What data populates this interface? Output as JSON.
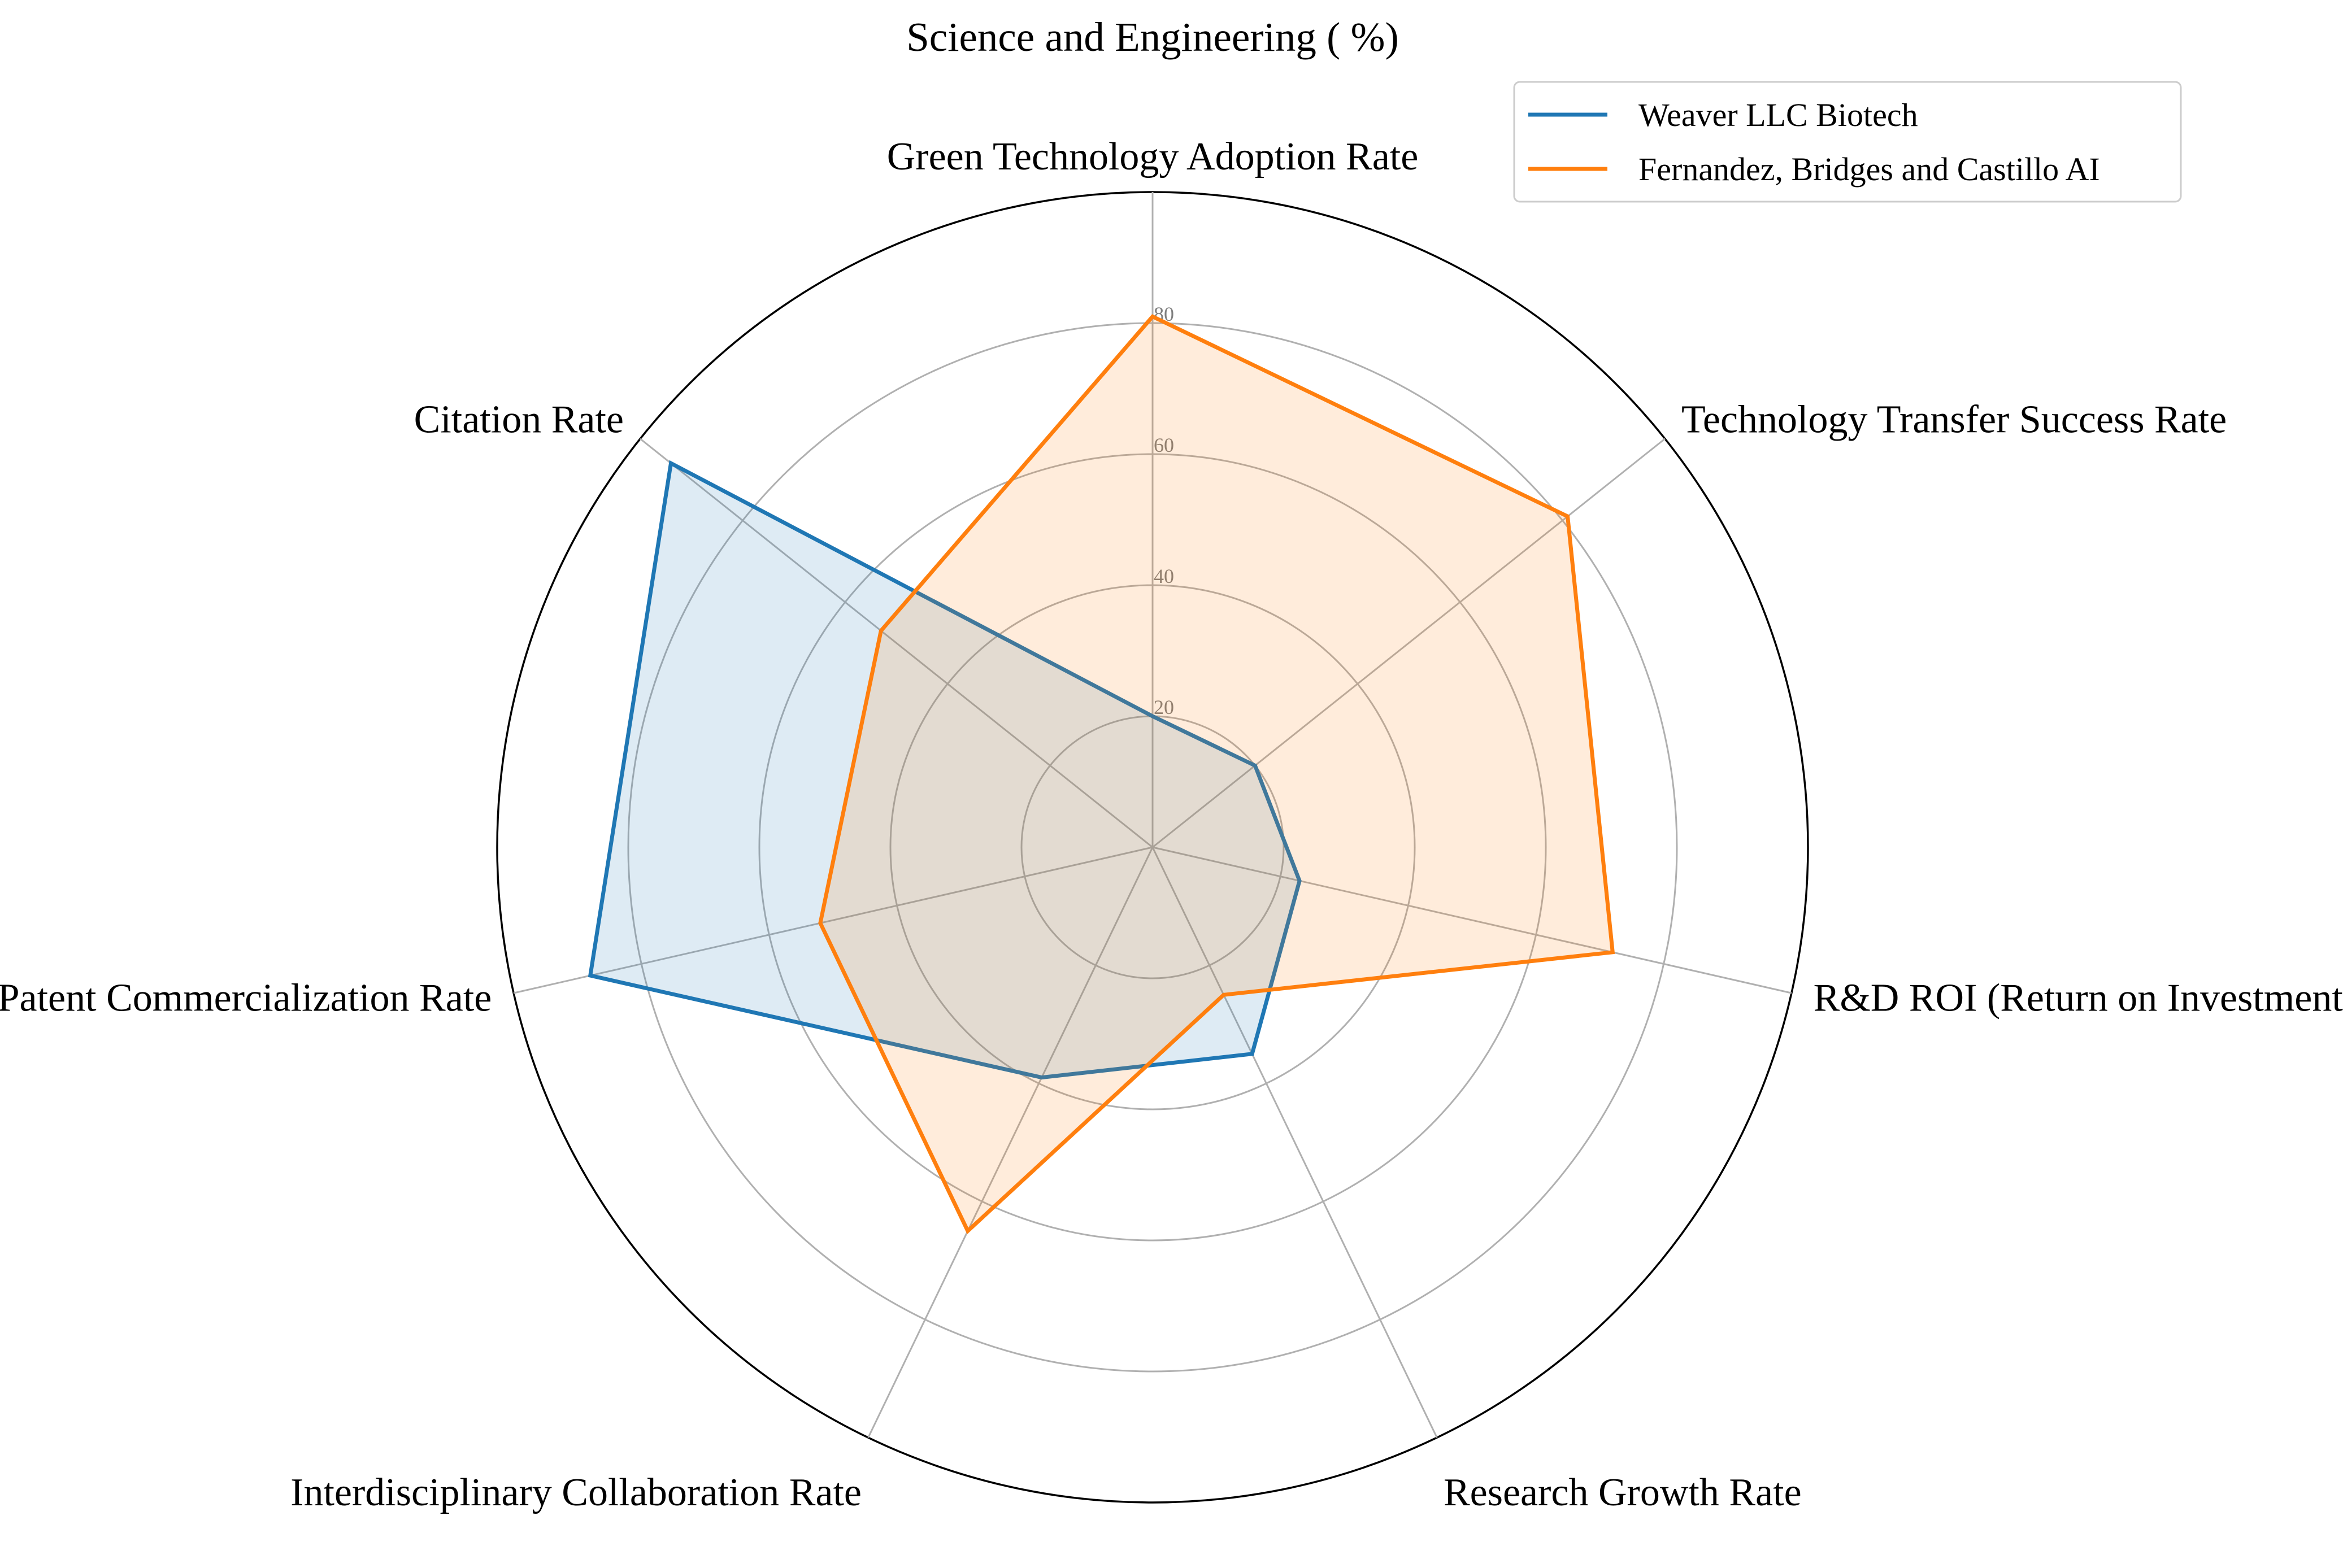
{
  "chart_data": {
    "type": "radar",
    "title": "Science and Engineering ( %)",
    "categories": [
      "Green Technology Adoption Rate",
      "Technology Transfer Success Rate",
      "R&D ROI (Return on Investment)",
      "Research Growth Rate",
      "Interdisciplinary Collaboration Rate",
      "Patent Commercialization Rate",
      "Citation Rate"
    ],
    "series": [
      {
        "name": "Weaver LLC Biotech",
        "color": "#1f77b4",
        "values": [
          20,
          20,
          23,
          35,
          39,
          88,
          94
        ]
      },
      {
        "name": "Fernandez, Bridges and Castillo AI",
        "color": "#ff7f0e",
        "values": [
          81,
          81,
          72,
          25,
          65,
          52,
          53
        ]
      }
    ],
    "rlim": [
      0,
      100
    ],
    "rticks": [
      20,
      40,
      60,
      80
    ],
    "grid": true,
    "legend_position": "top-right"
  }
}
